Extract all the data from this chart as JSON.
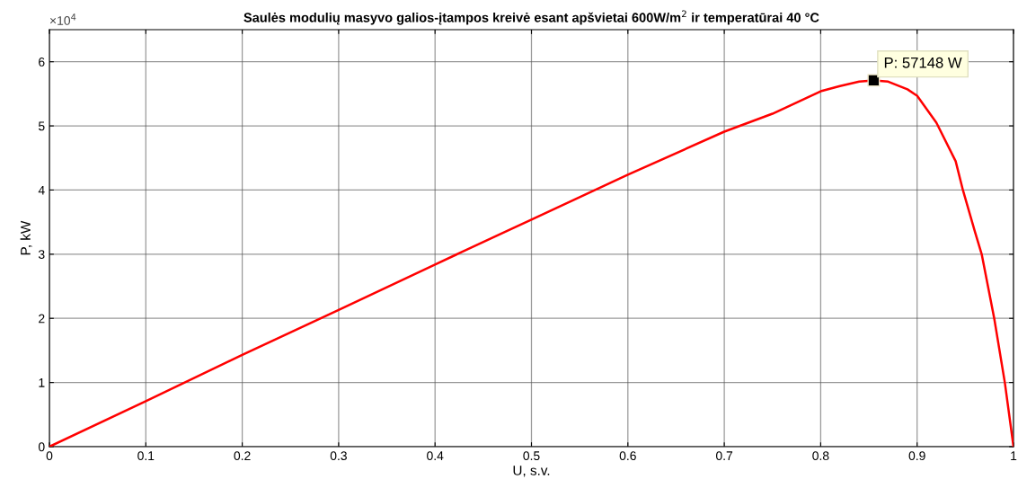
{
  "chart_data": {
    "type": "line",
    "title": "Saulės modulių masyvo galios-įtampos kreivė esant apšvietai 600W/m$^{2}$ ir temperatūrai 40 °C",
    "xlabel": "U, s.v.",
    "ylabel": "P, kW",
    "x": [
      0,
      0.1,
      0.2,
      0.3,
      0.4,
      0.5,
      0.6,
      0.7,
      0.75,
      0.8,
      0.82,
      0.84,
      0.855,
      0.87,
      0.89,
      0.9,
      0.92,
      0.94,
      0.9475,
      0.96,
      0.967,
      0.98,
      0.991,
      1.0
    ],
    "series": [
      {
        "color": "#ff0000",
        "values": [
          0,
          0.71,
          1.43,
          2.13,
          2.84,
          3.54,
          4.24,
          4.91,
          5.19,
          5.54,
          5.62,
          5.69,
          5.71,
          5.69,
          5.57,
          5.47,
          5.05,
          4.45,
          4.0,
          3.35,
          3.0,
          2.0,
          1.0,
          0
        ]
      }
    ],
    "xlim": [
      0,
      1
    ],
    "xticks": [
      0,
      0.1,
      0.2,
      0.3,
      0.4,
      0.5,
      0.6,
      0.7,
      0.8,
      0.9,
      1
    ],
    "ylim": [
      0,
      6.5
    ],
    "yticks": [
      0,
      1,
      2,
      3,
      4,
      5,
      6
    ],
    "grid": true,
    "annotations": [
      "×10$^{4}$",
      {
        "text": "P: 57148 W",
        "x": 0.855,
        "y": 5.71
      }
    ]
  }
}
